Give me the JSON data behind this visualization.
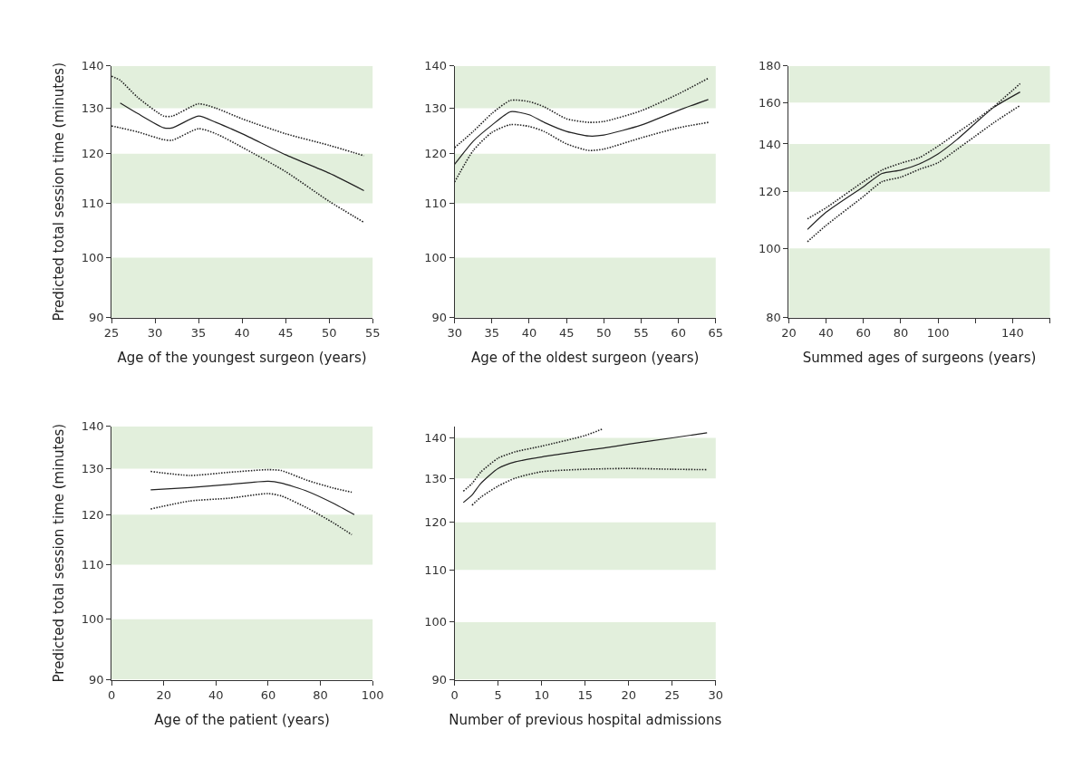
{
  "chart_data": [
    {
      "type": "line",
      "xlabel": "Age of the youngest surgeon (years)",
      "ylabel": "Predicted total session time (minutes)",
      "log": "y",
      "grid": false,
      "xlim": [
        25,
        55
      ],
      "xticks": [
        25,
        30,
        35,
        40,
        45,
        50,
        55
      ],
      "ylim": [
        90,
        140
      ],
      "yticks": [
        90,
        100,
        110,
        120,
        130,
        140
      ],
      "bands": [
        {
          "axis": "y",
          "from": 90,
          "to": 100,
          "color": "#e2efdc"
        },
        {
          "axis": "y",
          "from": 110,
          "to": 120,
          "color": "#e2efdc"
        },
        {
          "axis": "y",
          "from": 130,
          "to": 140,
          "color": "#e2efdc"
        }
      ],
      "series": [
        {
          "color": "#222222",
          "line_style": "solid",
          "x": [
            26,
            28,
            31,
            32,
            35,
            37,
            40,
            45,
            50,
            54
          ],
          "values": [
            131.2,
            128.8,
            125.6,
            125.6,
            128.2,
            126.8,
            124.3,
            119.8,
            116,
            112.5
          ]
        },
        {
          "color": "#222222",
          "line_style": "dotted",
          "x": [
            25,
            26,
            28,
            31,
            32,
            35,
            37,
            40,
            45,
            50,
            54
          ],
          "values": [
            126,
            125.6,
            124.7,
            123,
            122.9,
            125.4,
            124.3,
            121.4,
            116.3,
            110.4,
            106.4
          ]
        },
        {
          "color": "#222222",
          "line_style": "dotted",
          "x": [
            25,
            26,
            28,
            31,
            32,
            35,
            37,
            40,
            45,
            50,
            54
          ],
          "values": [
            137.5,
            136.5,
            132.5,
            128.2,
            128.2,
            131,
            130,
            127.6,
            124.3,
            121.8,
            119.6
          ]
        }
      ]
    },
    {
      "type": "line",
      "xlabel": "Age of the oldest surgeon (years)",
      "log": "y",
      "grid": false,
      "xlim": [
        30,
        65
      ],
      "xticks": [
        30,
        35,
        40,
        45,
        50,
        55,
        60,
        65
      ],
      "ylim": [
        90,
        140
      ],
      "yticks": [
        90,
        100,
        110,
        120,
        130,
        140
      ],
      "bands": [
        {
          "axis": "y",
          "from": 90,
          "to": 100,
          "color": "#e2efdc"
        },
        {
          "axis": "y",
          "from": 110,
          "to": 120,
          "color": "#e2efdc"
        },
        {
          "axis": "y",
          "from": 130,
          "to": 140,
          "color": "#e2efdc"
        }
      ],
      "series": [
        {
          "color": "#222222",
          "line_style": "solid",
          "x": [
            30,
            32.5,
            35,
            37.5,
            40,
            42,
            45,
            48,
            50,
            55,
            60,
            64
          ],
          "values": [
            117.8,
            122.7,
            126.2,
            129.2,
            128.5,
            126.8,
            124.8,
            123.8,
            124,
            126.2,
            129.5,
            132
          ]
        },
        {
          "color": "#222222",
          "line_style": "dotted",
          "x": [
            30,
            32.5,
            35,
            37.5,
            40,
            42,
            45,
            48,
            50,
            55,
            60,
            64
          ],
          "values": [
            114.2,
            120.7,
            124.6,
            126.3,
            125.9,
            124.8,
            122.1,
            120.7,
            121,
            123.4,
            125.6,
            126.8
          ]
        },
        {
          "color": "#222222",
          "line_style": "dotted",
          "x": [
            30,
            32.5,
            35,
            37.5,
            40,
            42,
            45,
            48,
            50,
            55,
            60,
            64
          ],
          "values": [
            121.3,
            124.8,
            128.8,
            131.8,
            131.5,
            130.3,
            127.6,
            126.8,
            127,
            129.4,
            133.3,
            137
          ]
        }
      ]
    },
    {
      "type": "line",
      "xlabel": "Summed ages of surgeons (years)",
      "log": "y",
      "grid": false,
      "xlim": [
        20,
        160
      ],
      "xticks": [
        20,
        40,
        60,
        80,
        100,
        {
          "value": 120,
          "label": null
        },
        140,
        {
          "value": 160,
          "label": null
        }
      ],
      "ylim": [
        80,
        180
      ],
      "yticks": [
        80,
        100,
        120,
        140,
        160,
        180
      ],
      "bands": [
        {
          "axis": "y",
          "from": 80,
          "to": 100,
          "color": "#e2efdc"
        },
        {
          "axis": "y",
          "from": 120,
          "to": 140,
          "color": "#e2efdc"
        },
        {
          "axis": "y",
          "from": 160,
          "to": 180,
          "color": "#e2efdc"
        }
      ],
      "series": [
        {
          "color": "#222222",
          "line_style": "solid",
          "x": [
            30,
            40,
            60,
            70,
            80,
            90,
            100,
            110,
            120,
            130,
            144
          ],
          "values": [
            106.3,
            112.4,
            122,
            127.3,
            128.7,
            131.3,
            135.6,
            141.9,
            149.7,
            157.6,
            165.5
          ]
        },
        {
          "color": "#222222",
          "line_style": "dotted",
          "x": [
            30,
            40,
            60,
            70,
            80,
            90,
            100,
            110,
            120,
            130,
            144
          ],
          "values": [
            102.2,
            107.7,
            118.2,
            124,
            125.8,
            129,
            131.8,
            137.5,
            143.6,
            150,
            158.5
          ]
        },
        {
          "color": "#222222",
          "line_style": "dotted",
          "x": [
            30,
            40,
            60,
            70,
            80,
            90,
            100,
            110,
            120,
            130,
            144
          ],
          "values": [
            110,
            114,
            124,
            128.7,
            131.6,
            134,
            139,
            145,
            151.1,
            158,
            170
          ]
        }
      ]
    },
    {
      "type": "line",
      "xlabel": "Age of the patient (years)",
      "ylabel": "Predicted total session time (minutes)",
      "log": "y",
      "grid": false,
      "xlim": [
        0,
        100
      ],
      "xticks": [
        0,
        20,
        40,
        60,
        80,
        100
      ],
      "ylim": [
        90,
        140
      ],
      "yticks": [
        90,
        100,
        110,
        120,
        130,
        140
      ],
      "bands": [
        {
          "axis": "y",
          "from": 90,
          "to": 100,
          "color": "#e2efdc"
        },
        {
          "axis": "y",
          "from": 110,
          "to": 120,
          "color": "#e2efdc"
        },
        {
          "axis": "y",
          "from": 130,
          "to": 140,
          "color": "#e2efdc"
        }
      ],
      "series": [
        {
          "color": "#222222",
          "line_style": "solid",
          "x": [
            15,
            30,
            45,
            60,
            65,
            75,
            85,
            93
          ],
          "values": [
            125.3,
            125.8,
            126.5,
            127.2,
            126.8,
            125,
            122.4,
            120
          ]
        },
        {
          "color": "#222222",
          "line_style": "dotted",
          "x": [
            15,
            30,
            45,
            60,
            65,
            75,
            85,
            92
          ],
          "values": [
            121.2,
            122.9,
            123.5,
            124.5,
            124,
            121.4,
            118.3,
            115.9
          ]
        },
        {
          "color": "#222222",
          "line_style": "dotted",
          "x": [
            15,
            30,
            45,
            60,
            65,
            75,
            85,
            92
          ],
          "values": [
            129.4,
            128.5,
            129.2,
            129.8,
            129.6,
            127.4,
            125.7,
            124.8
          ]
        }
      ]
    },
    {
      "type": "line",
      "xlabel": "Number of previous hospital admissions",
      "log": "y",
      "grid": false,
      "xlim": [
        0,
        30
      ],
      "xticks": [
        0,
        5,
        10,
        15,
        20,
        25,
        30
      ],
      "ylim": [
        90,
        143
      ],
      "yticks": [
        90,
        100,
        110,
        120,
        130,
        140
      ],
      "bands": [
        {
          "axis": "y",
          "from": 90,
          "to": 100,
          "color": "#e2efdc"
        },
        {
          "axis": "y",
          "from": 110,
          "to": 120,
          "color": "#e2efdc"
        },
        {
          "axis": "y",
          "from": 130,
          "to": 140,
          "color": "#e2efdc"
        }
      ],
      "series": [
        {
          "color": "#222222",
          "line_style": "solid",
          "x": [
            1,
            2,
            3,
            5,
            7,
            10,
            15,
            17,
            20,
            25,
            29
          ],
          "values": [
            124.4,
            126.1,
            128.8,
            132.4,
            134,
            135.2,
            136.8,
            137.4,
            138.4,
            140,
            141.3
          ]
        },
        {
          "color": "#222222",
          "line_style": "dotted",
          "x": [
            2,
            3,
            5,
            7,
            10,
            15,
            17,
            20,
            25,
            29
          ],
          "values": [
            123.8,
            125.6,
            128.2,
            130.1,
            131.6,
            132.2,
            132.3,
            132.4,
            132.2,
            132.1
          ]
        },
        {
          "color": "#222222",
          "line_style": "dotted",
          "x": [
            1,
            2,
            3,
            5,
            7,
            10,
            15,
            17
          ],
          "values": [
            127,
            128.8,
            131.5,
            134.9,
            136.5,
            137.9,
            140.6,
            142.3
          ]
        }
      ]
    }
  ]
}
